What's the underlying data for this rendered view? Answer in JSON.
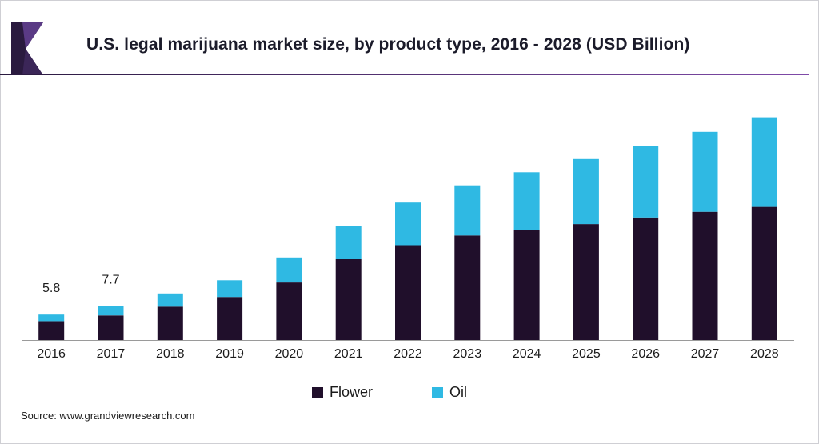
{
  "header": {
    "title": "U.S. legal marijuana market size, by product type, 2016 - 2028 (USD Billion)"
  },
  "colors": {
    "flower": "#200f2b",
    "oil": "#2fb9e3",
    "accent": "#4b2d6d",
    "rule_start": "#2a1a3f",
    "rule_end": "#7f4aa8"
  },
  "chart_data": {
    "type": "bar",
    "stacked": true,
    "title": "U.S. legal marijuana market size, by product type, 2016 - 2028 (USD Billion)",
    "xlabel": "",
    "ylabel": "",
    "categories": [
      "2016",
      "2017",
      "2018",
      "2019",
      "2020",
      "2021",
      "2022",
      "2023",
      "2024",
      "2025",
      "2026",
      "2027",
      "2028"
    ],
    "series": [
      {
        "name": "Flower",
        "values": [
          4.3,
          5.6,
          7.6,
          9.8,
          13.1,
          18.4,
          21.6,
          23.8,
          25.1,
          26.4,
          27.9,
          29.2,
          30.3
        ]
      },
      {
        "name": "Oil",
        "values": [
          1.5,
          2.1,
          3.0,
          3.8,
          5.7,
          7.6,
          9.7,
          11.4,
          13.1,
          14.8,
          16.3,
          18.2,
          20.4
        ]
      }
    ],
    "data_labels": [
      {
        "category": "2016",
        "text": "5.8"
      },
      {
        "category": "2017",
        "text": "7.7"
      }
    ],
    "ylim": [
      0,
      51
    ],
    "grid": false,
    "y_axis_visible": false,
    "legend_position": "bottom"
  },
  "legend": {
    "items": [
      {
        "label": "Flower",
        "color": "#200f2b"
      },
      {
        "label": "Oil",
        "color": "#2fb9e3"
      }
    ]
  },
  "footer": {
    "source": "Source: www.grandviewresearch.com"
  }
}
